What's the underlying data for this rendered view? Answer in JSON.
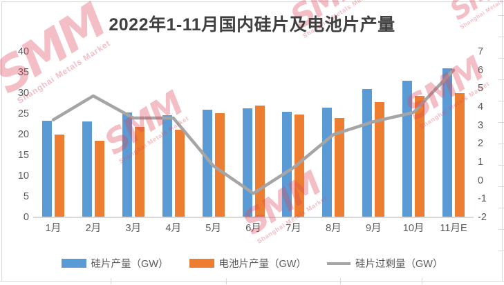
{
  "title": "2022年1-11月国内硅片及电池片产量",
  "watermark": {
    "logo": "SMM",
    "subtext": "Shanghai Metals Market"
  },
  "chart_data": {
    "type": "combo-bar-line",
    "title": "2022年1-11月国内硅片及电池片产量",
    "categories": [
      "1月",
      "2月",
      "3月",
      "4月",
      "5月",
      "6月",
      "7月",
      "8月",
      "9月",
      "10月",
      "11月E"
    ],
    "series": [
      {
        "name": "硅片产量（GW）",
        "type": "bar",
        "color": "#5B9BD5",
        "axis": "left",
        "values": [
          23.3,
          23.1,
          25.3,
          24.6,
          26.0,
          26.3,
          25.5,
          26.5,
          31.0,
          33.0,
          36.0
        ]
      },
      {
        "name": "电池片产量（GW）",
        "type": "bar",
        "color": "#ED7D31",
        "axis": "left",
        "values": [
          20.0,
          18.5,
          21.9,
          21.2,
          25.2,
          27.0,
          24.8,
          24.0,
          27.8,
          29.3,
          30.0
        ]
      },
      {
        "name": "硅片过剩量（GW）",
        "type": "line",
        "color": "#A5A5A5",
        "axis": "right",
        "values": [
          3.3,
          4.6,
          3.4,
          3.4,
          0.8,
          -0.7,
          0.7,
          2.5,
          3.2,
          3.7,
          6.0
        ]
      }
    ],
    "left_axis": {
      "min": 0,
      "max": 40,
      "step": 5,
      "ticks": [
        "0",
        "5",
        "10",
        "15",
        "20",
        "25",
        "30",
        "35",
        "40"
      ]
    },
    "right_axis": {
      "min": -2,
      "max": 7,
      "step": 1,
      "ticks": [
        "-2",
        "-1",
        "0",
        "1",
        "2",
        "3",
        "4",
        "5",
        "6",
        "7"
      ]
    },
    "legend_position": "bottom",
    "grid": false
  }
}
